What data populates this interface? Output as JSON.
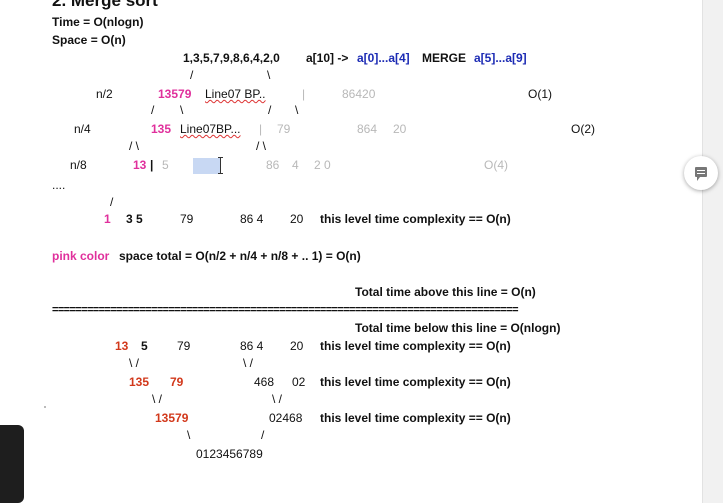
{
  "header": {
    "title_fragment": "2. Merge sort",
    "time": "Time = O(nlogn)",
    "space": "Space = O(n)"
  },
  "top": {
    "input": "1,3,5,7,9,8,6,4,2,0",
    "range": "a[10] ->",
    "left_part": "a[0]...a[4]",
    "merge": "MERGE",
    "right_part": "a[5]...a[9]",
    "slash_l": "/",
    "slash_r": "\\"
  },
  "split": {
    "n2": {
      "label": "n/2",
      "pink": "13579",
      "link": "Line07 BP..",
      "bar": "|",
      "right": "86420",
      "complexity": "O(1)",
      "sl1": "/",
      "sl2": "\\",
      "sl3": "/",
      "sl4": "\\"
    },
    "n4": {
      "label": "n/4",
      "pink": "135",
      "link": "Line07BP...",
      "bar": "|",
      "mid": "79",
      "right1": "864",
      "right2": "20",
      "complexity": "O(2)",
      "sl1": "/ \\",
      "sl2": "/ \\"
    },
    "n8": {
      "label": "n/8",
      "pink": "13",
      "bar": "|",
      "five": "5",
      "right1": "86",
      "right2": "4",
      "right3": "2 0",
      "complexity": "O(4)"
    },
    "dots": "....",
    "leaf_slash": "/"
  },
  "leaf_level": {
    "one": "1",
    "rest": "3  5",
    "seven_nine": "79",
    "right": "86  4",
    "twenty": "20",
    "label": "this level time complexity == O(n)"
  },
  "space_line": {
    "pink": "pink color",
    "rest": "space total = O(n/2 + n/4 + n/8 + .. 1) = O(n)"
  },
  "above": "Total time above this line = O(n)",
  "separator": "================================================================================",
  "below": "Total time below this line = O(nlogn)",
  "merge_levels": {
    "l1": {
      "red": "13",
      "five": "5",
      "seven_nine": "79",
      "right": "86  4",
      "twenty": "20",
      "label": "this level time complexity == O(n)",
      "sl_a": "\\ /",
      "sl_b": "\\ /"
    },
    "l2": {
      "red1": "135",
      "red2": "79",
      "right": "468",
      "right2": "02",
      "label": "this level time complexity == O(n)",
      "sl_a": "\\  /",
      "sl_b": "\\  /"
    },
    "l3": {
      "red": "13579",
      "right": "02468",
      "label": "this level time complexity == O(n)",
      "sl_a": "\\",
      "sl_b": "/"
    },
    "result": "0123456789"
  },
  "colors": {
    "pink": "#e0309c",
    "red": "#d2381b",
    "blue": "#1c2bb4"
  },
  "icons": {
    "comment": "add-comment-icon"
  }
}
